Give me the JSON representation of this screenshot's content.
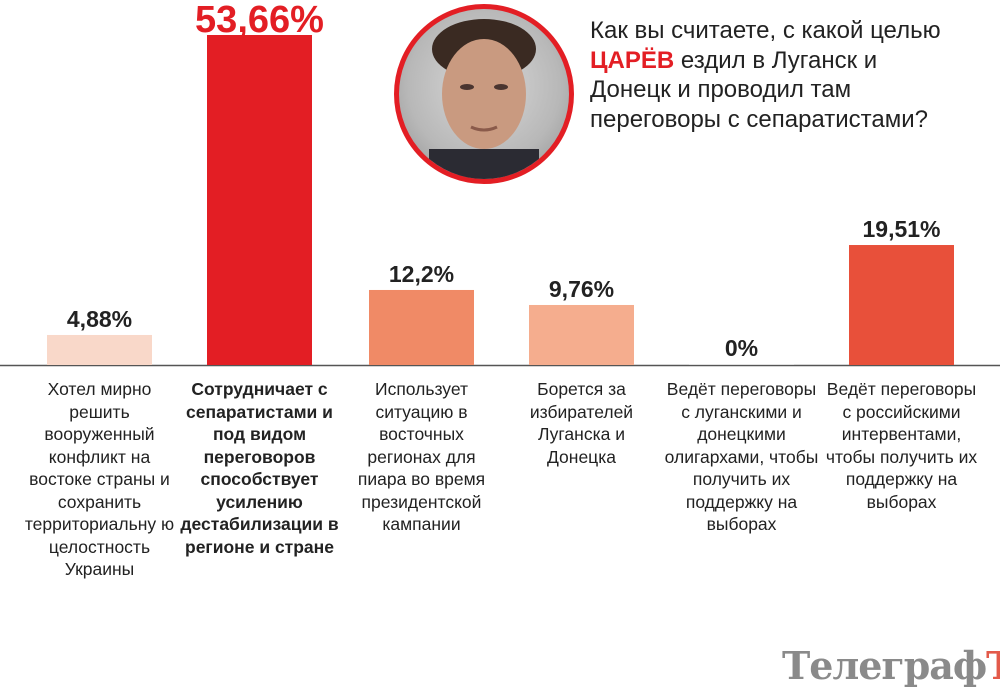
{
  "question": {
    "before": "Как вы считаете, с какой целью ",
    "highlight": "ЦАРЁВ",
    "after": " ездил в Луганск и Донецк и проводил там переговоры с сепаратистами?"
  },
  "photo": {
    "icon": "portrait-photo",
    "border_color": "#e31e24"
  },
  "logo": {
    "text_main": "Телеграф",
    "text_last": "Ъ"
  },
  "chart_data": {
    "type": "bar",
    "categories": [
      "Хотел мирно решить вооруженный конфликт на востоке страны и сохранить территориальну ю целостность Украины",
      "Сотрудничает с сепаратистами и под видом переговоров способствует усилению дестабилизации в регионе и стране",
      "Использует ситуацию в восточных регионах для пиара во время президентской кампании",
      "Борется за избирателей Луганска и Донецка",
      "Ведёт переговоры с луганскими и донецкими олигархами, чтобы получить их поддержку на выборах",
      "Ведёт переговоры с российскими интервентами, чтобы получить их поддержку на выборах"
    ],
    "values": [
      4.88,
      53.66,
      12.2,
      9.76,
      0,
      19.51
    ],
    "data_labels": [
      "4,88%",
      "53,66%",
      "12,2%",
      "9,76%",
      "0%",
      "19,51%"
    ],
    "colors": [
      "#f9d8c9",
      "#e31e24",
      "#f08a66",
      "#f5ad8e",
      "#e0e0e0",
      "#e8503a"
    ],
    "highlight_label_color": "#e31e24",
    "ylim": [
      0,
      55
    ],
    "grid": false,
    "legend": "none"
  }
}
